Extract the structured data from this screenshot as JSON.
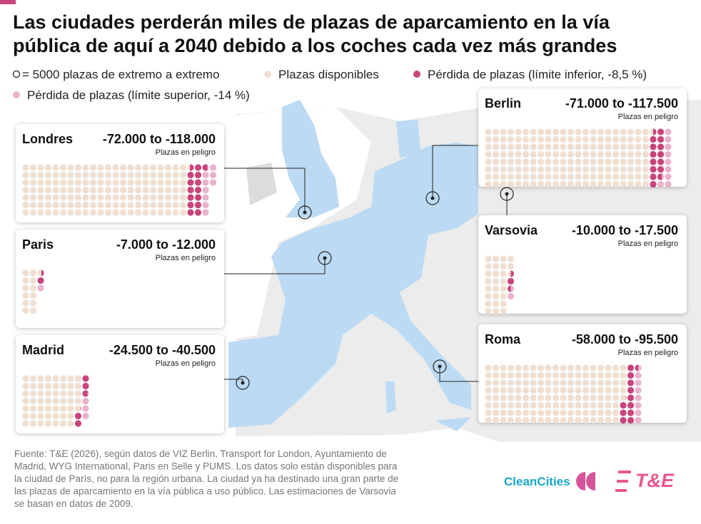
{
  "header": {
    "title_lines": [
      "Las ciudades perderán miles de plazas de aparcamiento en la vía",
      "pública de aquí a 2040 debido a los coches cada vez más grandes"
    ]
  },
  "legend": {
    "dot_scale": "= 5000 plazas de extremo a extremo",
    "available": {
      "label": "Plazas disponibles",
      "color": "#f0dfd1"
    },
    "loss_lower": {
      "label": "Pérdida de plazas (límite inferior, -8,5 %)",
      "color": "#c8457c"
    },
    "loss_upper": {
      "label": "Pérdida de plazas (límite superior, -14 %)",
      "color": "#e9b3cd"
    }
  },
  "cities": [
    {
      "name": "Londres",
      "range": "-72.000 to -118.000",
      "note": "Plazas en peligro",
      "dots": {
        "available": 154.4,
        "loss_lower": 14.4,
        "loss_upper": 9.2
      }
    },
    {
      "name": "Paris",
      "range": "-7.000 to -12.000",
      "note": "Plazas en peligro",
      "dots": {
        "available": 12.6,
        "loss_lower": 1.4,
        "loss_upper": 1
      }
    },
    {
      "name": "Madrid",
      "range": "-24.500 to -40.500",
      "note": "Plazas en peligro",
      "dots": {
        "available": 53.9,
        "loss_lower": 4.9,
        "loss_upper": 3.2
      }
    },
    {
      "name": "Berlin",
      "range": "-71.000 to -117.500",
      "note": "Plazas en peligro",
      "dots": {
        "available": 176.5,
        "loss_lower": 14.2,
        "loss_upper": 9.3
      }
    },
    {
      "name": "Varsovia",
      "range": "-10.000 to -17.500",
      "note": "Plazas en peligro",
      "dots": {
        "available": 26.5,
        "loss_lower": 2,
        "loss_upper": 1.5
      }
    },
    {
      "name": "Roma",
      "range": "-58.000 to -95.500",
      "note": "Plazas en peligro",
      "dots": {
        "available": 148.9,
        "loss_lower": 11.6,
        "loss_upper": 7.5
      }
    }
  ],
  "source_lines": [
    "Fuente: T&E (2026), según datos de VIZ Berlin, Transport for London, Ayuntamiento de",
    "Madrid, WYG International, Paris en Selle y PUMS. Los datos solo están disponibles para",
    "la ciudad de París, no para la región urbana. La ciudad ya ha destinado una gran parte de",
    "las plazas de aparcamiento en la vía pública a uso público. Las estimaciones de Varsovia",
    "se basan en datos de 2009."
  ],
  "logos": [
    "CleanCities",
    "T&E"
  ]
}
